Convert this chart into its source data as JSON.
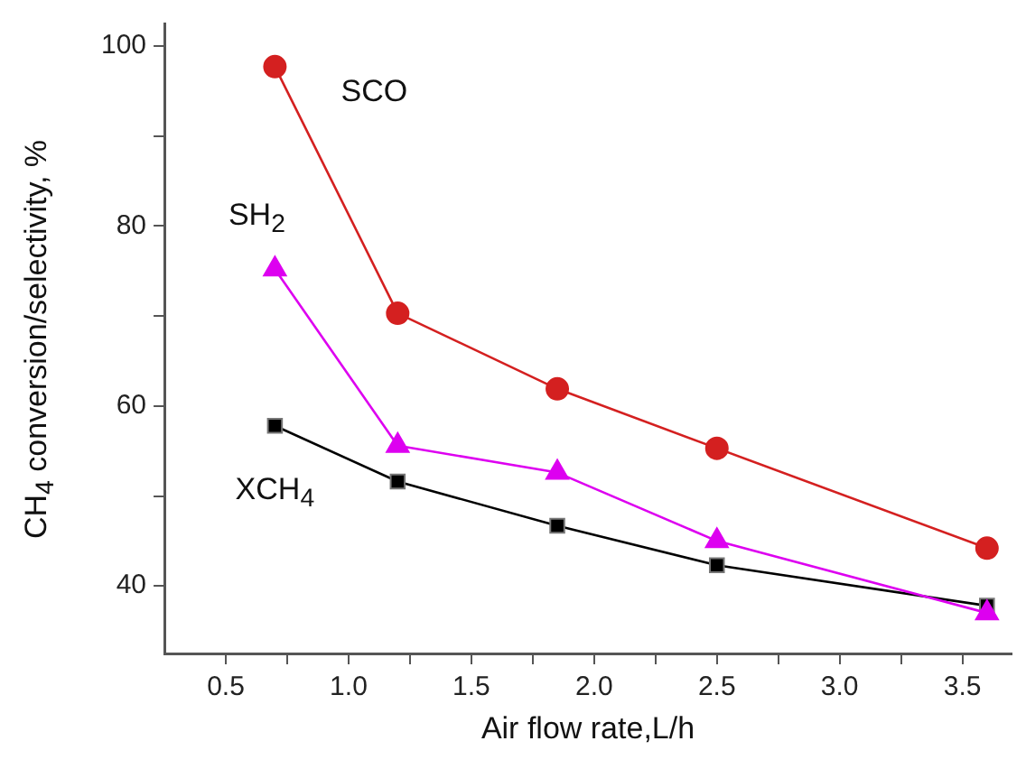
{
  "chart_data": {
    "type": "line",
    "xlabel": "Air flow rate,L/h",
    "ylabel": "CH$_{4}$ conversion/selectivity, %",
    "xlim": [
      0.25,
      3.7
    ],
    "ylim": [
      32.5,
      102.5
    ],
    "xticks": [
      {
        "value": 0.5,
        "label": "0.5"
      },
      {
        "value": 0.75,
        "label": null
      },
      {
        "value": 1.0,
        "label": "1.0"
      },
      {
        "value": 1.25,
        "label": null
      },
      {
        "value": 1.5,
        "label": "1.5"
      },
      {
        "value": 1.75,
        "label": null
      },
      {
        "value": 2.0,
        "label": "2.0"
      },
      {
        "value": 2.25,
        "label": null
      },
      {
        "value": 2.5,
        "label": "2.5"
      },
      {
        "value": 2.75,
        "label": null
      },
      {
        "value": 3.0,
        "label": "3.0"
      },
      {
        "value": 3.25,
        "label": null
      },
      {
        "value": 3.5,
        "label": "3.5"
      }
    ],
    "yticks": [
      40,
      {
        "value": 50,
        "label": null
      },
      60,
      {
        "value": 70,
        "label": null
      },
      80,
      {
        "value": 90,
        "label": null
      },
      100
    ],
    "grid": false,
    "legend": false,
    "line_style": "solid",
    "x": [
      0.7,
      1.2,
      1.85,
      2.5,
      3.6
    ],
    "series": [
      {
        "name": "SCO",
        "color": "#d42020",
        "marker": "circle",
        "values": [
          97.7,
          70.3,
          61.9,
          55.3,
          44.2
        ]
      },
      {
        "name": "SH$_{2}$",
        "color": "#dd00f0",
        "marker": "triangle",
        "values": [
          75.2,
          55.6,
          52.6,
          45.0,
          37.0
        ]
      },
      {
        "name": "XCH$_{4}$",
        "color": "#000000",
        "marker": "square",
        "values": [
          57.8,
          51.6,
          46.7,
          42.3,
          37.8
        ]
      }
    ]
  }
}
